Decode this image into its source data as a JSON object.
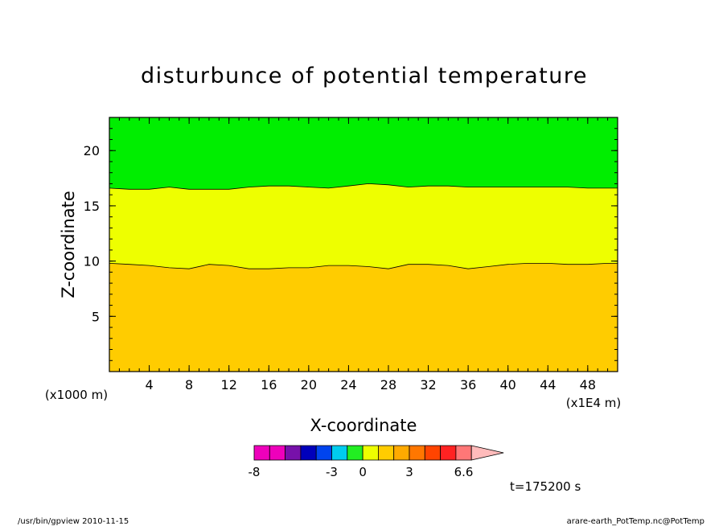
{
  "chart_data": {
    "type": "contour",
    "title": "disturbunce of potential temperature",
    "xlabel": "X-coordinate",
    "ylabel": "Z-coordinate",
    "x_unit": "(x1E4 m)",
    "y_unit": "(x1000 m)",
    "xlim": [
      0,
      51
    ],
    "ylim": [
      0,
      23
    ],
    "x_ticks": [
      4,
      8,
      12,
      16,
      20,
      24,
      28,
      32,
      36,
      40,
      44,
      48
    ],
    "y_ticks": [
      5,
      10,
      15,
      20
    ],
    "x_minor_step": 1,
    "y_minor_step": 1,
    "contour_lines": [
      {
        "x": [
          0,
          2,
          4,
          6,
          8,
          10,
          12,
          14,
          16,
          18,
          20,
          22,
          24,
          26,
          28,
          30,
          32,
          34,
          36,
          38,
          40,
          42,
          44,
          46,
          48,
          50,
          51
        ],
        "y": [
          9.8,
          9.7,
          9.6,
          9.4,
          9.3,
          9.7,
          9.6,
          9.3,
          9.3,
          9.4,
          9.4,
          9.6,
          9.6,
          9.5,
          9.3,
          9.7,
          9.7,
          9.6,
          9.3,
          9.5,
          9.7,
          9.8,
          9.8,
          9.7,
          9.7,
          9.8,
          9.8
        ]
      },
      {
        "x": [
          0,
          2,
          4,
          6,
          8,
          10,
          12,
          14,
          16,
          18,
          20,
          22,
          24,
          26,
          28,
          30,
          32,
          34,
          36,
          38,
          40,
          42,
          44,
          46,
          48,
          50,
          51
        ],
        "y": [
          16.6,
          16.5,
          16.5,
          16.7,
          16.5,
          16.5,
          16.5,
          16.7,
          16.8,
          16.8,
          16.7,
          16.6,
          16.8,
          17.0,
          16.9,
          16.7,
          16.8,
          16.8,
          16.7,
          16.7,
          16.7,
          16.7,
          16.7,
          16.7,
          16.6,
          16.6,
          16.6
        ]
      }
    ],
    "fills": [
      "#ffcc00",
      "#eeff00",
      "#00ee00"
    ],
    "colorbar": {
      "colors": [
        "#ee00bb",
        "#ee00bb",
        "#7711aa",
        "#0000bb",
        "#0044ee",
        "#00ccee",
        "#22ee22",
        "#eeff00",
        "#ffcc00",
        "#ffaa00",
        "#ff7700",
        "#ff4400",
        "#ff2222",
        "#ff7777"
      ],
      "extend_color": "#ffbbbb",
      "labels": [
        {
          "text": "-8",
          "index": 0
        },
        {
          "text": "-3",
          "index": 5
        },
        {
          "text": "0",
          "index": 7
        },
        {
          "text": "3",
          "index": 10
        },
        {
          "text": "6.6",
          "index": 13.5
        }
      ]
    },
    "time_label": "t=175200 s"
  },
  "footer": {
    "left": "/usr/bin/gpview  2010-11-15",
    "right": "arare-earth_PotTemp.nc@PotTemp"
  }
}
